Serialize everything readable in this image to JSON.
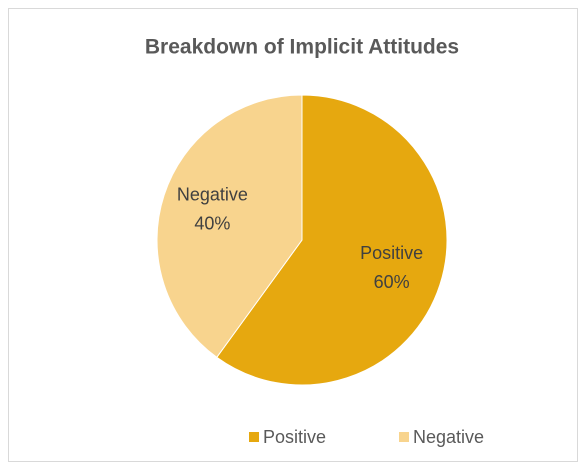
{
  "chart_data": {
    "type": "pie",
    "title": "Breakdown of Implicit Attitudes",
    "categories": [
      "Positive",
      "Negative"
    ],
    "values": [
      60,
      40
    ],
    "value_labels": [
      "60%",
      "40%"
    ],
    "colors": [
      "#E6A80F",
      "#F8D48E"
    ],
    "legend": "bottom"
  }
}
